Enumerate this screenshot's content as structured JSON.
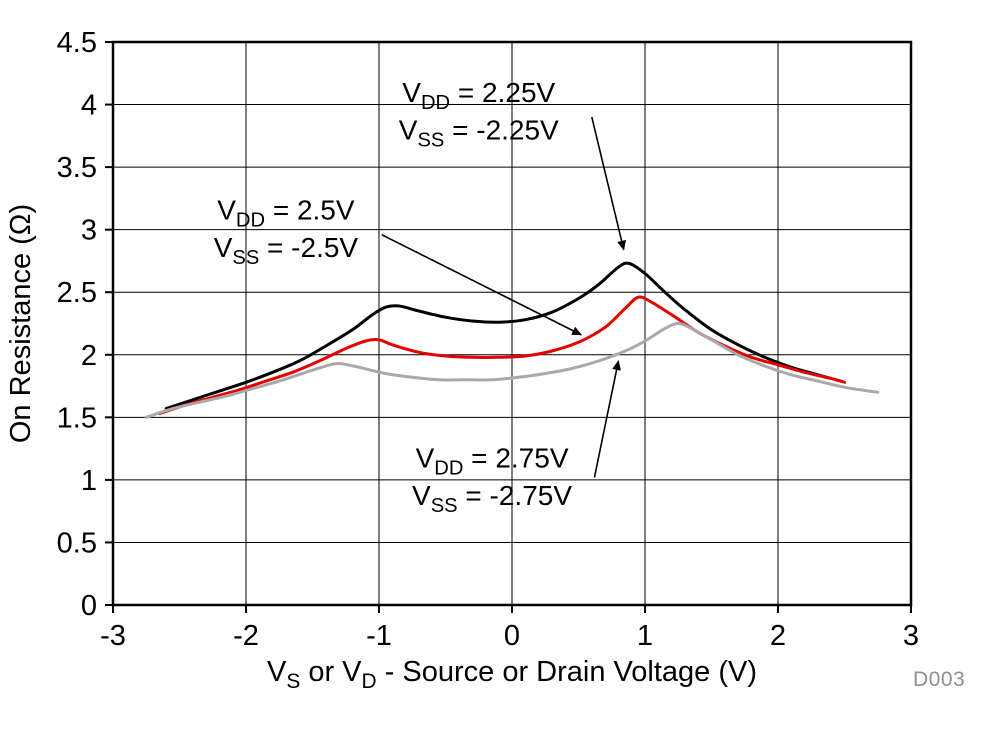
{
  "figure": {
    "watermark": "D003"
  },
  "chart_data": {
    "type": "line",
    "title": "",
    "ylabel": "On Resistance (Ω)",
    "xlabel_segments": [
      [
        "V"
      ],
      [
        "S",
        "sub"
      ],
      [
        " or V"
      ],
      [
        "D",
        "sub"
      ],
      [
        " - Source or Drain Voltage (V)"
      ]
    ],
    "xlim": [
      -3,
      3
    ],
    "ylim": [
      0,
      4.5
    ],
    "xticks": [
      -3,
      -2,
      -1,
      0,
      1,
      2,
      3
    ],
    "yticks": [
      0,
      0.5,
      1,
      1.5,
      2,
      2.5,
      3,
      3.5,
      4,
      4.5
    ],
    "grid": true,
    "legend_position": "annotations",
    "axis_color": "#000000",
    "series": [
      {
        "name": "VDD = 2.25V, VSS = -2.25V",
        "color": "#000000",
        "points": [
          [
            -2.6,
            1.57
          ],
          [
            -2.4,
            1.64
          ],
          [
            -2.2,
            1.71
          ],
          [
            -2.0,
            1.78
          ],
          [
            -1.8,
            1.86
          ],
          [
            -1.6,
            1.95
          ],
          [
            -1.4,
            2.07
          ],
          [
            -1.2,
            2.2
          ],
          [
            -1.05,
            2.32
          ],
          [
            -0.95,
            2.38
          ],
          [
            -0.85,
            2.39
          ],
          [
            -0.7,
            2.35
          ],
          [
            -0.5,
            2.3
          ],
          [
            -0.3,
            2.27
          ],
          [
            -0.1,
            2.26
          ],
          [
            0.1,
            2.28
          ],
          [
            0.3,
            2.34
          ],
          [
            0.5,
            2.45
          ],
          [
            0.65,
            2.56
          ],
          [
            0.8,
            2.7
          ],
          [
            0.88,
            2.73
          ],
          [
            1.0,
            2.65
          ],
          [
            1.15,
            2.5
          ],
          [
            1.3,
            2.36
          ],
          [
            1.5,
            2.2
          ],
          [
            1.7,
            2.08
          ],
          [
            1.9,
            1.98
          ],
          [
            2.1,
            1.9
          ],
          [
            2.3,
            1.84
          ],
          [
            2.4,
            1.81
          ]
        ]
      },
      {
        "name": "VDD = 2.5V, VSS = -2.5V",
        "color": "#e60000",
        "points": [
          [
            -2.65,
            1.53
          ],
          [
            -2.45,
            1.6
          ],
          [
            -2.25,
            1.66
          ],
          [
            -2.05,
            1.72
          ],
          [
            -1.85,
            1.79
          ],
          [
            -1.65,
            1.86
          ],
          [
            -1.45,
            1.95
          ],
          [
            -1.25,
            2.05
          ],
          [
            -1.1,
            2.11
          ],
          [
            -1.0,
            2.12
          ],
          [
            -0.9,
            2.08
          ],
          [
            -0.7,
            2.02
          ],
          [
            -0.5,
            1.99
          ],
          [
            -0.3,
            1.98
          ],
          [
            -0.1,
            1.98
          ],
          [
            0.1,
            1.99
          ],
          [
            0.3,
            2.03
          ],
          [
            0.5,
            2.1
          ],
          [
            0.7,
            2.22
          ],
          [
            0.85,
            2.37
          ],
          [
            0.95,
            2.46
          ],
          [
            1.05,
            2.42
          ],
          [
            1.2,
            2.32
          ],
          [
            1.4,
            2.18
          ],
          [
            1.6,
            2.07
          ],
          [
            1.8,
            1.98
          ],
          [
            2.0,
            1.92
          ],
          [
            2.2,
            1.86
          ],
          [
            2.4,
            1.81
          ],
          [
            2.5,
            1.78
          ]
        ]
      },
      {
        "name": "VDD = 2.75V, VSS = -2.75V",
        "color": "#a9a9a9",
        "points": [
          [
            -2.75,
            1.5
          ],
          [
            -2.55,
            1.57
          ],
          [
            -2.35,
            1.62
          ],
          [
            -2.15,
            1.67
          ],
          [
            -1.95,
            1.73
          ],
          [
            -1.75,
            1.79
          ],
          [
            -1.55,
            1.86
          ],
          [
            -1.4,
            1.91
          ],
          [
            -1.3,
            1.93
          ],
          [
            -1.15,
            1.9
          ],
          [
            -0.95,
            1.85
          ],
          [
            -0.75,
            1.82
          ],
          [
            -0.55,
            1.8
          ],
          [
            -0.35,
            1.8
          ],
          [
            -0.15,
            1.8
          ],
          [
            0.05,
            1.82
          ],
          [
            0.25,
            1.85
          ],
          [
            0.45,
            1.89
          ],
          [
            0.65,
            1.95
          ],
          [
            0.85,
            2.03
          ],
          [
            1.0,
            2.11
          ],
          [
            1.15,
            2.21
          ],
          [
            1.25,
            2.25
          ],
          [
            1.35,
            2.21
          ],
          [
            1.5,
            2.12
          ],
          [
            1.7,
            2.0
          ],
          [
            1.9,
            1.91
          ],
          [
            2.1,
            1.84
          ],
          [
            2.3,
            1.79
          ],
          [
            2.5,
            1.74
          ],
          [
            2.75,
            1.7
          ]
        ]
      }
    ],
    "annotations": [
      {
        "id": "label-vdd-2p25",
        "lines": [
          [
            [
              "V"
            ],
            [
              "DD",
              "sub"
            ],
            [
              " = 2.25V"
            ]
          ],
          [
            [
              "V"
            ],
            [
              "SS",
              "sub"
            ],
            [
              " = -2.25V"
            ]
          ]
        ],
        "x": -0.25,
        "y": 4.02,
        "line_gap": 0.3,
        "arrow": {
          "x1": 0.6,
          "y1": 3.9,
          "x2": 0.84,
          "y2": 2.84
        }
      },
      {
        "id": "label-vdd-2p5",
        "lines": [
          [
            [
              "V"
            ],
            [
              "DD",
              "sub"
            ],
            [
              " = 2.5V"
            ]
          ],
          [
            [
              "V"
            ],
            [
              "SS",
              "sub"
            ],
            [
              " = -2.5V"
            ]
          ]
        ],
        "x": -1.7,
        "y": 3.08,
        "line_gap": 0.3,
        "arrow": {
          "x1": -0.98,
          "y1": 2.96,
          "x2": 0.52,
          "y2": 2.16
        }
      },
      {
        "id": "label-vdd-2p75",
        "lines": [
          [
            [
              "V"
            ],
            [
              "DD",
              "sub"
            ],
            [
              " = 2.75V"
            ]
          ],
          [
            [
              "V"
            ],
            [
              "SS",
              "sub"
            ],
            [
              " = -2.75V"
            ]
          ]
        ],
        "x": -0.15,
        "y": 1.1,
        "line_gap": 0.3,
        "arrow": {
          "x1": 0.62,
          "y1": 1.02,
          "x2": 0.8,
          "y2": 1.95
        }
      }
    ]
  }
}
